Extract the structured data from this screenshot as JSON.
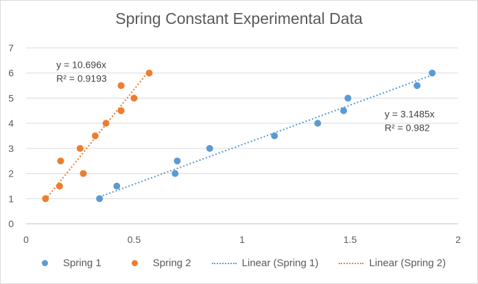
{
  "chart_data": {
    "type": "scatter",
    "title": "Spring Constant Experimental Data",
    "xlabel": "",
    "ylabel": "",
    "xlim": [
      0,
      2
    ],
    "ylim": [
      0,
      7
    ],
    "x_ticks": [
      "0",
      "0.5",
      "1",
      "1.5",
      "2"
    ],
    "y_ticks": [
      "0",
      "1",
      "2",
      "3",
      "4",
      "5",
      "6",
      "7"
    ],
    "grid": "horizontal",
    "legend_position": "bottom",
    "series": [
      {
        "name": "Spring 1",
        "color": "#5b9bd5",
        "points": [
          {
            "x": 0.34,
            "y": 1.0
          },
          {
            "x": 0.42,
            "y": 1.5
          },
          {
            "x": 0.69,
            "y": 2.0
          },
          {
            "x": 0.7,
            "y": 2.5
          },
          {
            "x": 0.85,
            "y": 3.0
          },
          {
            "x": 1.15,
            "y": 3.5
          },
          {
            "x": 1.35,
            "y": 4.0
          },
          {
            "x": 1.47,
            "y": 4.5
          },
          {
            "x": 1.49,
            "y": 5.0
          },
          {
            "x": 1.81,
            "y": 5.5
          },
          {
            "x": 1.88,
            "y": 6.0
          }
        ],
        "trendline": {
          "name": "Linear (Spring 1)",
          "equation": "y = 3.1485x",
          "r_squared": "R² = 0.982",
          "x_range": [
            0.34,
            1.88
          ]
        }
      },
      {
        "name": "Spring 2",
        "color": "#ed7d31",
        "points": [
          {
            "x": 0.09,
            "y": 1.0
          },
          {
            "x": 0.155,
            "y": 1.5
          },
          {
            "x": 0.16,
            "y": 2.5
          },
          {
            "x": 0.25,
            "y": 3.0
          },
          {
            "x": 0.265,
            "y": 2.0
          },
          {
            "x": 0.32,
            "y": 3.5
          },
          {
            "x": 0.37,
            "y": 4.0
          },
          {
            "x": 0.44,
            "y": 4.5
          },
          {
            "x": 0.44,
            "y": 5.5
          },
          {
            "x": 0.5,
            "y": 5.0
          },
          {
            "x": 0.57,
            "y": 6.0
          }
        ],
        "trendline": {
          "name": "Linear (Spring 2)",
          "equation": "y = 10.696x",
          "r_squared": "R² = 0.9193",
          "x_range": [
            0.09,
            0.57
          ]
        }
      }
    ]
  }
}
